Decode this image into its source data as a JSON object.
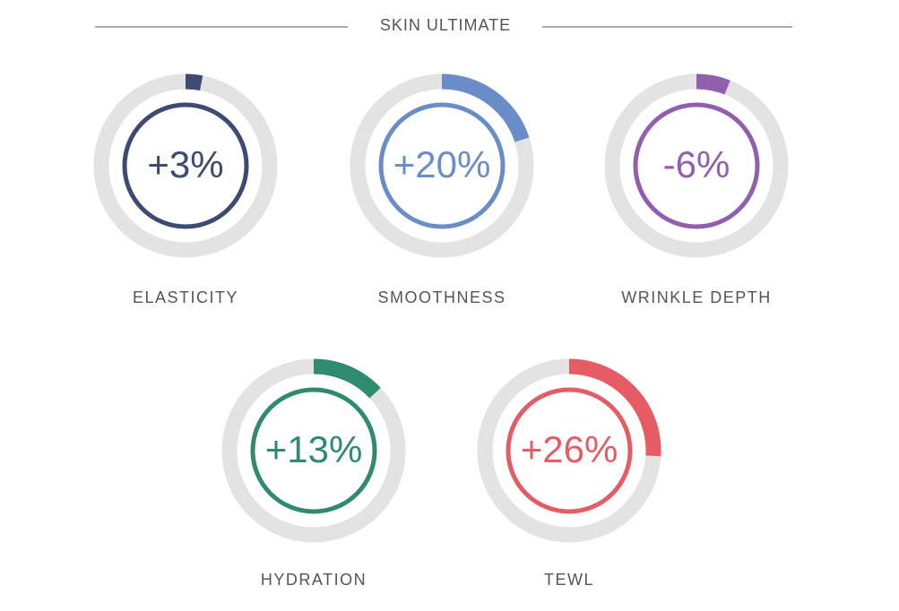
{
  "chart_data": {
    "type": "gauge",
    "title": "SKIN ULTIMATE",
    "categories": [
      "ELASTICITY",
      "SMOOTHNESS",
      "WRINKLE DEPTH",
      "HYDRATION",
      "TEWL"
    ],
    "values": [
      3,
      20,
      -6,
      13,
      26
    ],
    "value_labels": [
      "+3%",
      "+20%",
      "-6%",
      "+13%",
      "+26%"
    ],
    "colors": [
      "#3d4a73",
      "#6a8cc8",
      "#915fae",
      "#2e8b70",
      "#e65c64"
    ],
    "ylim": [
      0,
      100
    ]
  }
}
